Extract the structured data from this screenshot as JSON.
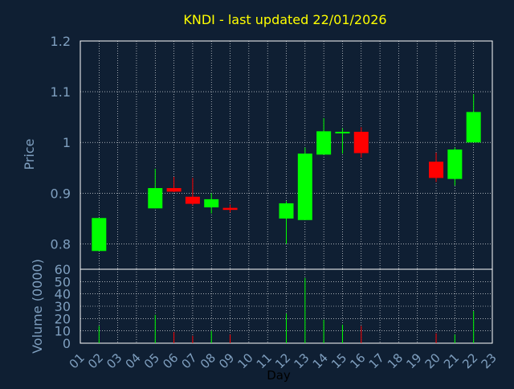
{
  "chart_data": {
    "type": "candlestick",
    "title": "KNDI - last updated 22/01/2026",
    "colors": {
      "background": "#0f1f33",
      "title": "#ffff00",
      "axis_text": "#7f9fbf",
      "grid": "#ffffff",
      "frame": "#ffffff",
      "up": "#00ff00",
      "down": "#ff0000"
    },
    "price_panel": {
      "ylabel": "Price",
      "ylim": [
        0.75,
        1.2
      ],
      "yticks": [
        "0.8",
        "0.9",
        "1",
        "1.1",
        "1.2"
      ],
      "grid": true
    },
    "volume_panel": {
      "ylabel": "Volume (0000)",
      "ylim": [
        0,
        60
      ],
      "yticks": [
        "0",
        "10",
        "20",
        "30",
        "40",
        "50",
        "60"
      ],
      "grid": true
    },
    "xlabel": "Day",
    "x_ticks": [
      "01",
      "02",
      "03",
      "04",
      "05",
      "06",
      "07",
      "08",
      "09",
      "10",
      "11",
      "12",
      "13",
      "14",
      "15",
      "16",
      "17",
      "18",
      "19",
      "20",
      "21",
      "22",
      "23"
    ],
    "candles": [
      {
        "day": "02",
        "open": 0.786,
        "high": 0.851,
        "low": 0.786,
        "close": 0.851,
        "volume": 14
      },
      {
        "day": "05",
        "open": 0.87,
        "high": 0.948,
        "low": 0.87,
        "close": 0.91,
        "volume": 23
      },
      {
        "day": "06",
        "open": 0.91,
        "high": 0.932,
        "low": 0.902,
        "close": 0.903,
        "volume": 9
      },
      {
        "day": "07",
        "open": 0.893,
        "high": 0.93,
        "low": 0.876,
        "close": 0.879,
        "volume": 6
      },
      {
        "day": "08",
        "open": 0.872,
        "high": 0.9,
        "low": 0.86,
        "close": 0.888,
        "volume": 10
      },
      {
        "day": "09",
        "open": 0.871,
        "high": 0.878,
        "low": 0.862,
        "close": 0.867,
        "volume": 7
      },
      {
        "day": "12",
        "open": 0.85,
        "high": 0.884,
        "low": 0.8,
        "close": 0.88,
        "volume": 24
      },
      {
        "day": "13",
        "open": 0.847,
        "high": 0.99,
        "low": 0.847,
        "close": 0.978,
        "volume": 53
      },
      {
        "day": "14",
        "open": 0.976,
        "high": 1.048,
        "low": 0.976,
        "close": 1.022,
        "volume": 19
      },
      {
        "day": "15",
        "open": 1.018,
        "high": 1.028,
        "low": 0.978,
        "close": 1.021,
        "volume": 15
      },
      {
        "day": "16",
        "open": 1.021,
        "high": 1.03,
        "low": 0.97,
        "close": 0.979,
        "volume": 14
      },
      {
        "day": "20",
        "open": 0.962,
        "high": 0.98,
        "low": 0.922,
        "close": 0.93,
        "volume": 8
      },
      {
        "day": "21",
        "open": 0.928,
        "high": 0.99,
        "low": 0.915,
        "close": 0.986,
        "volume": 7
      },
      {
        "day": "22",
        "open": 1.0,
        "high": 1.095,
        "low": 1.0,
        "close": 1.06,
        "volume": 26
      }
    ]
  }
}
